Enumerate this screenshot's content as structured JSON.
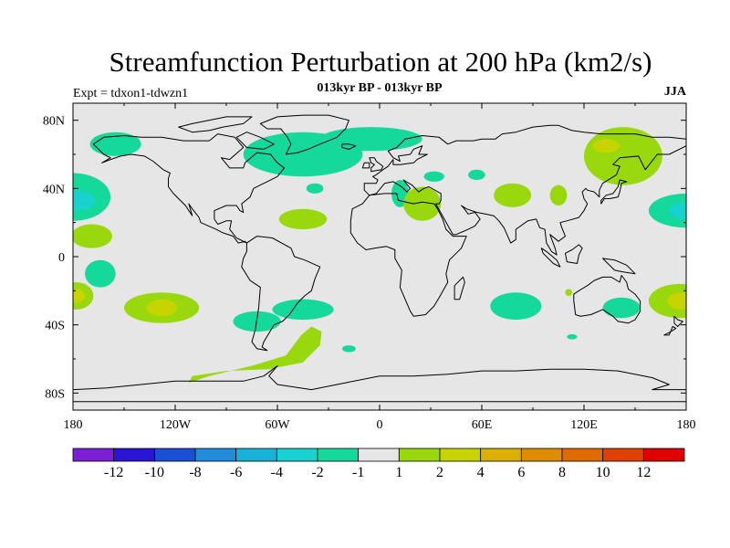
{
  "title": "Streamfunction Perturbation at 200 hPa (km2/s)",
  "subtitle": "013kyr BP - 013kyr BP",
  "experiment_label": "Expt = tdxon1-tdwzn1",
  "season_label": "JJA",
  "map": {
    "projection": "cylindrical equidistant",
    "lon_range": [
      -180,
      180
    ],
    "lat_range": [
      -90,
      90
    ],
    "background_color": "#e6e6e6",
    "coastline_color": "#000000",
    "x_ticks": [
      {
        "lon": -180,
        "label": "180"
      },
      {
        "lon": -120,
        "label": "120W"
      },
      {
        "lon": -60,
        "label": "60W"
      },
      {
        "lon": 0,
        "label": "0"
      },
      {
        "lon": 60,
        "label": "60E"
      },
      {
        "lon": 120,
        "label": "120E"
      },
      {
        "lon": 180,
        "label": "180"
      }
    ],
    "y_ticks": [
      {
        "lat": 80,
        "label": "80N"
      },
      {
        "lat": 40,
        "label": "40N"
      },
      {
        "lat": 0,
        "label": "0"
      },
      {
        "lat": -40,
        "label": "40S"
      },
      {
        "lat": -80,
        "label": "80S"
      }
    ]
  },
  "colorbar": {
    "colors": [
      "#7a1fd6",
      "#2a14d6",
      "#1a50d6",
      "#1f8ddc",
      "#16b2d8",
      "#18d2d0",
      "#15d99b",
      "#e6e6e6",
      "#99d80d",
      "#c8d400",
      "#dcb000",
      "#e08c00",
      "#e06a00",
      "#e04000",
      "#e00000"
    ],
    "labels": [
      "-12",
      "-10",
      "-8",
      "-6",
      "-4",
      "-2",
      "-1",
      "1",
      "2",
      "4",
      "6",
      "8",
      "10",
      "12"
    ]
  },
  "chart_data": {
    "type": "heatmap",
    "title": "Streamfunction Perturbation at 200 hPa (km2/s)",
    "subtitle": "013kyr BP - 013kyr BP",
    "units": "km2/s",
    "season": "JJA",
    "levels": [
      -12,
      -10,
      -8,
      -6,
      -4,
      -2,
      -1,
      1,
      2,
      4,
      6,
      8,
      10,
      12
    ],
    "anomaly_regions": [
      {
        "name": "n-atlantic-negative",
        "lon": -45,
        "lat": 60,
        "lon_radius": 35,
        "lat_radius": 13,
        "level_index": 6
      },
      {
        "name": "arctic-atlantic-negative",
        "lon": -5,
        "lat": 69,
        "lon_radius": 30,
        "lat_radius": 7,
        "level_index": 6
      },
      {
        "name": "alaska-negative",
        "lon": -155,
        "lat": 66,
        "lon_radius": 15,
        "lat_radius": 7,
        "level_index": 6
      },
      {
        "name": "nw-pacific-negative",
        "lon": -180,
        "lat": 35,
        "lon_radius": 22,
        "lat_radius": 14,
        "level_index": 6
      },
      {
        "name": "nw-pacific-core",
        "lon": -180,
        "lat": 33,
        "lon_radius": 13,
        "lat_radius": 6,
        "level_index": 5
      },
      {
        "name": "ne-pacific-negative",
        "lon": 180,
        "lat": 27,
        "lon_radius": 22,
        "lat_radius": 10,
        "level_index": 6
      },
      {
        "name": "ne-pacific-core",
        "lon": 180,
        "lat": 27,
        "lon_radius": 10,
        "lat_radius": 5,
        "level_index": 5
      },
      {
        "name": "mid-atlantic-small-negative",
        "lon": -38,
        "lat": 40,
        "lon_radius": 5,
        "lat_radius": 3,
        "level_index": 6
      },
      {
        "name": "mediterranean-negative",
        "lon": 12,
        "lat": 37,
        "lon_radius": 5,
        "lat_radius": 8,
        "level_index": 6
      },
      {
        "name": "black-sea-negative",
        "lon": 32,
        "lat": 47,
        "lon_radius": 6,
        "lat_radius": 3,
        "level_index": 6
      },
      {
        "name": "caspian-negative",
        "lon": 57,
        "lat": 48,
        "lon_radius": 5,
        "lat_radius": 3,
        "level_index": 6
      },
      {
        "name": "trop-pacific-negative",
        "lon": -164,
        "lat": -10,
        "lon_radius": 9,
        "lat_radius": 8,
        "level_index": 6
      },
      {
        "name": "s-atlantic-negative",
        "lon": -45,
        "lat": -31,
        "lon_radius": 18,
        "lat_radius": 6,
        "level_index": 6
      },
      {
        "name": "s-america-negative",
        "lon": -72,
        "lat": -38,
        "lon_radius": 14,
        "lat_radius": 6,
        "level_index": 6
      },
      {
        "name": "s-indian-negative",
        "lon": 80,
        "lat": -29,
        "lon_radius": 15,
        "lat_radius": 8,
        "level_index": 6
      },
      {
        "name": "australia-negative",
        "lon": 142,
        "lat": -30,
        "lon_radius": 11,
        "lat_radius": 6,
        "level_index": 6
      },
      {
        "name": "s-atlantic-small-negative",
        "lon": -18,
        "lat": -54,
        "lon_radius": 4,
        "lat_radius": 2,
        "level_index": 6
      },
      {
        "name": "madagascar-small-negative",
        "lon": 113,
        "lat": -47,
        "lon_radius": 3,
        "lat_radius": 1.5,
        "level_index": 6
      },
      {
        "name": "siberia-positive",
        "lon": 143,
        "lat": 59,
        "lon_radius": 23,
        "lat_radius": 17,
        "level_index": 8
      },
      {
        "name": "siberia-core",
        "lon": 133,
        "lat": 65,
        "lon_radius": 8,
        "lat_radius": 4,
        "level_index": 9
      },
      {
        "name": "n-africa-positive",
        "lon": 25,
        "lat": 31,
        "lon_radius": 11,
        "lat_radius": 10,
        "level_index": 8
      },
      {
        "name": "c-asia-positive",
        "lon": 78,
        "lat": 36,
        "lon_radius": 11,
        "lat_radius": 7,
        "level_index": 8
      },
      {
        "name": "tibet-positive",
        "lon": 105,
        "lat": 36,
        "lon_radius": 5,
        "lat_radius": 6,
        "level_index": 8
      },
      {
        "name": "n-atlantic-positive",
        "lon": -45,
        "lat": 22,
        "lon_radius": 14,
        "lat_radius": 6,
        "level_index": 8
      },
      {
        "name": "e-pacific-positive",
        "lon": -169,
        "lat": 12,
        "lon_radius": 12,
        "lat_radius": 7,
        "level_index": 8
      },
      {
        "name": "s-pacific-positive",
        "lon": -128,
        "lat": -30,
        "lon_radius": 22,
        "lat_radius": 9,
        "level_index": 8
      },
      {
        "name": "s-pacific-core",
        "lon": -128,
        "lat": -30,
        "lon_radius": 9,
        "lat_radius": 5,
        "level_index": 9
      },
      {
        "name": "sw-pacific-positive",
        "lon": -178,
        "lat": -23,
        "lon_radius": 10,
        "lat_radius": 8,
        "level_index": 8
      },
      {
        "name": "sw-pacific-core",
        "lon": -178,
        "lat": -23,
        "lon_radius": 5,
        "lat_radius": 4,
        "level_index": 9
      },
      {
        "name": "tasman-positive",
        "lon": 176,
        "lat": -26,
        "lon_radius": 18,
        "lat_radius": 10,
        "level_index": 8
      },
      {
        "name": "tasman-core",
        "lon": 177,
        "lat": -26,
        "lon_radius": 8,
        "lat_radius": 5,
        "level_index": 9
      },
      {
        "name": "w-australia-small-positive",
        "lon": 111,
        "lat": -21,
        "lon_radius": 2,
        "lat_radius": 2,
        "level_index": 8
      }
    ],
    "positive_bands": [
      {
        "name": "southern-ocean-positive",
        "points": [
          [
            -110,
            -70
          ],
          [
            -90,
            -67
          ],
          [
            -65,
            -66
          ],
          [
            -45,
            -62
          ],
          [
            -35,
            -52
          ],
          [
            -34,
            -44
          ],
          [
            -40,
            -41
          ],
          [
            -46,
            -46
          ],
          [
            -55,
            -58
          ],
          [
            -75,
            -64
          ],
          [
            -100,
            -70
          ],
          [
            -112,
            -74
          ]
        ],
        "level_index": 8
      }
    ]
  }
}
